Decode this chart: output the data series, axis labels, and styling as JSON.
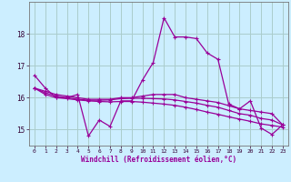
{
  "xlabel": "Windchill (Refroidissement éolien,°C)",
  "background_color": "#cceeff",
  "grid_color": "#aacccc",
  "line_color": "#990099",
  "x": [
    0,
    1,
    2,
    3,
    4,
    5,
    6,
    7,
    8,
    9,
    10,
    11,
    12,
    13,
    14,
    15,
    16,
    17,
    18,
    19,
    20,
    21,
    22,
    23
  ],
  "series1": [
    16.7,
    16.3,
    16.0,
    16.0,
    16.1,
    14.8,
    15.3,
    15.1,
    15.9,
    15.9,
    16.55,
    17.1,
    18.5,
    17.9,
    17.9,
    17.85,
    17.4,
    17.2,
    15.8,
    15.65,
    15.9,
    15.05,
    14.85,
    15.15
  ],
  "series2": [
    16.3,
    16.2,
    16.1,
    16.05,
    16.0,
    15.95,
    15.95,
    15.95,
    16.0,
    16.0,
    16.05,
    16.1,
    16.1,
    16.1,
    16.0,
    15.95,
    15.9,
    15.85,
    15.75,
    15.65,
    15.6,
    15.55,
    15.5,
    15.15
  ],
  "series3": [
    16.3,
    16.15,
    16.05,
    16.0,
    15.95,
    15.92,
    15.92,
    15.93,
    15.97,
    15.98,
    15.98,
    15.97,
    15.96,
    15.93,
    15.88,
    15.83,
    15.76,
    15.7,
    15.6,
    15.5,
    15.45,
    15.35,
    15.3,
    15.15
  ],
  "series4": [
    16.3,
    16.1,
    16.0,
    15.97,
    15.93,
    15.9,
    15.88,
    15.87,
    15.88,
    15.88,
    15.86,
    15.83,
    15.8,
    15.76,
    15.7,
    15.63,
    15.55,
    15.48,
    15.4,
    15.33,
    15.26,
    15.18,
    15.13,
    15.08
  ],
  "ylim": [
    14.5,
    19.0
  ],
  "yticks": [
    15,
    16,
    17,
    18
  ],
  "xticks": [
    0,
    1,
    2,
    3,
    4,
    5,
    6,
    7,
    8,
    9,
    10,
    11,
    12,
    13,
    14,
    15,
    16,
    17,
    18,
    19,
    20,
    21,
    22,
    23
  ]
}
